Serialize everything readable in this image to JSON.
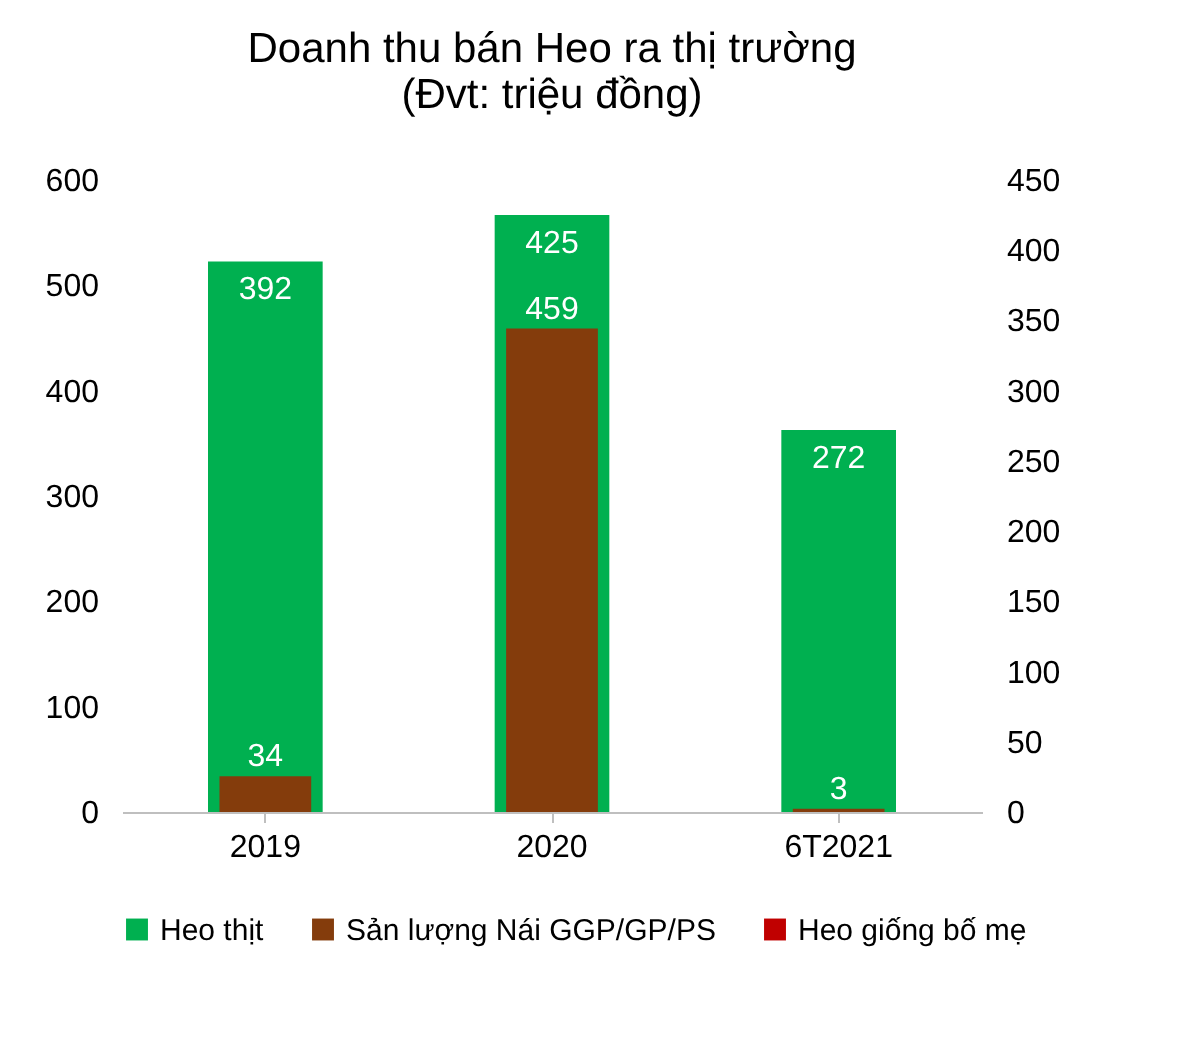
{
  "chart_data": {
    "type": "bar",
    "title": "Doanh thu bán Heo ra thị trường",
    "subtitle": "(Đvt: triệu đồng)",
    "categories": [
      "2019",
      "2020",
      "6T2021"
    ],
    "series": [
      {
        "name": "Heo thịt",
        "color": "#00b050",
        "values": [
          392,
          425,
          272
        ],
        "axis": "y2"
      },
      {
        "name": "Sản lượng Nái GGP/GP/PS",
        "color": "#843c0c",
        "values": [
          34,
          459,
          3
        ]
      },
      {
        "name": "Heo giống bố mẹ",
        "color": "#c00000",
        "values": [
          null,
          null,
          null
        ]
      }
    ],
    "ylim": [
      0,
      600
    ],
    "yticks": [
      0,
      100,
      200,
      300,
      400,
      500,
      600
    ],
    "y2lim": [
      0,
      450
    ],
    "y2ticks": [
      0,
      50,
      100,
      150,
      200,
      250,
      300,
      350,
      400,
      450
    ],
    "data_labels": true,
    "grid": false,
    "legend": "bottom"
  }
}
